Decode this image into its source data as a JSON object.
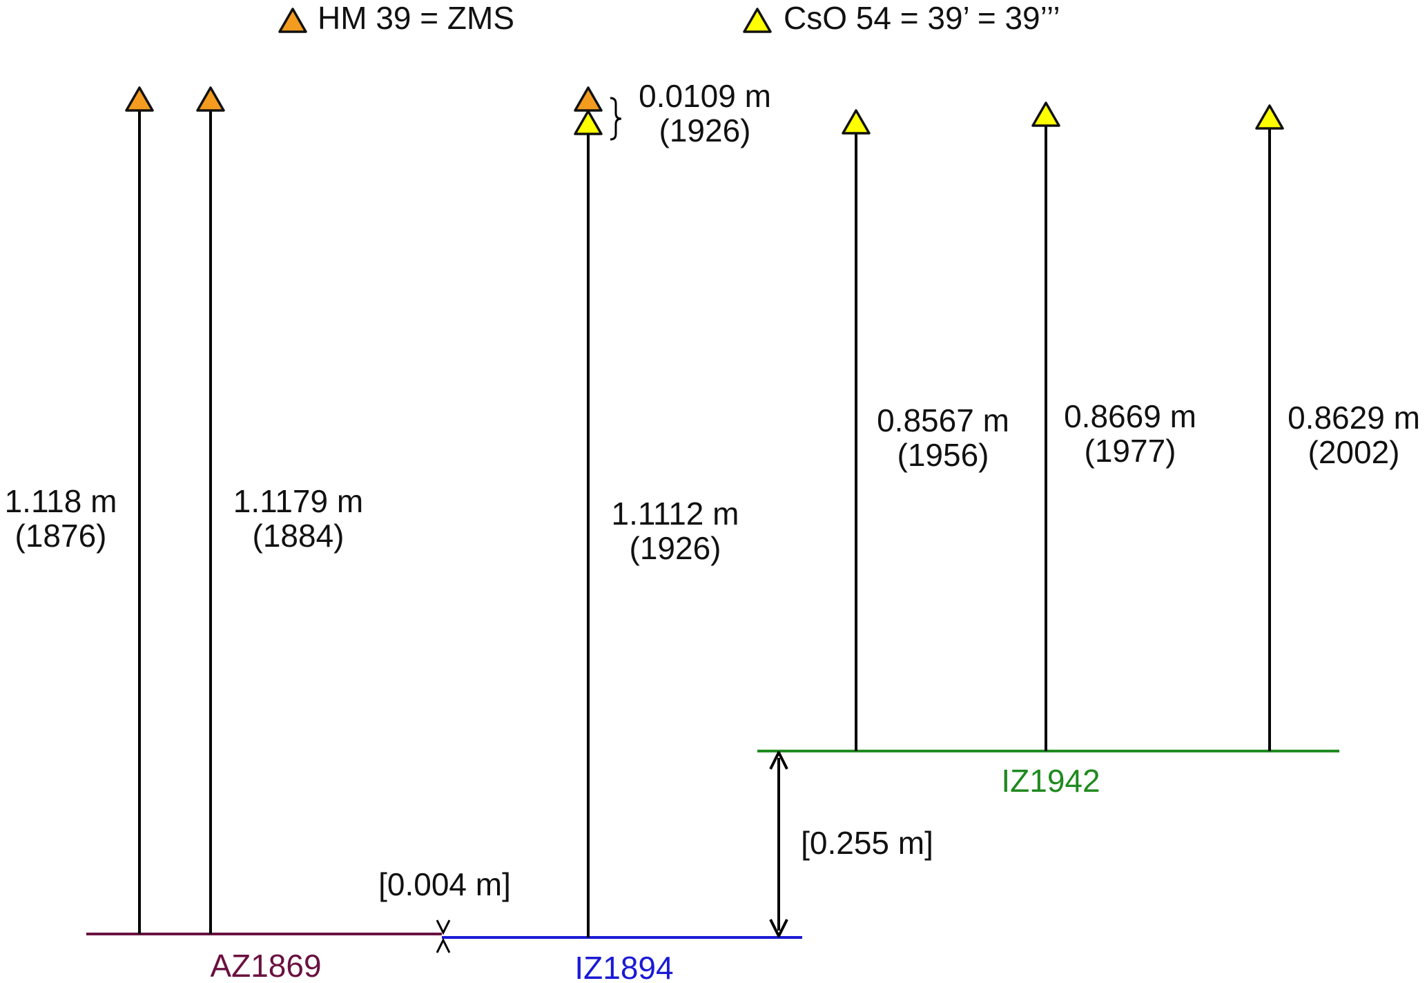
{
  "legend": {
    "hm": {
      "label": "HM 39 = ZMS",
      "color": "#f39c1f"
    },
    "cso": {
      "label": "CsO 54 = 39’ = 39’’’",
      "color": "#ffff00"
    }
  },
  "datums": {
    "az1869": {
      "label": "AZ1869",
      "color": "#6a1140"
    },
    "iz1894": {
      "label": "IZ1894",
      "color": "#1a1ad6"
    },
    "iz1942": {
      "label": "IZ1942",
      "color": "#1f8a1f"
    }
  },
  "measurements": [
    {
      "value": "1.118 m",
      "year": "(1876)",
      "marker": "hm"
    },
    {
      "value": "1.1179 m",
      "year": "(1884)",
      "marker": "hm"
    },
    {
      "value": "1.1112 m",
      "year": "(1926)",
      "marker": "hm+cso"
    },
    {
      "value": "0.8567 m",
      "year": "(1956)",
      "marker": "cso"
    },
    {
      "value": "0.8669 m",
      "year": "(1977)",
      "marker": "cso"
    },
    {
      "value": "0.8629 m",
      "year": "(2002)",
      "marker": "cso"
    }
  ],
  "annotations": {
    "marker_offset": {
      "value": "0.0109 m",
      "year": "(1926)"
    },
    "offset_az_iz1894": "[0.004 m]",
    "offset_iz1894_iz1942": "[0.255 m]"
  },
  "colors": {
    "line": "#000000",
    "marker_stroke": "#111111"
  }
}
